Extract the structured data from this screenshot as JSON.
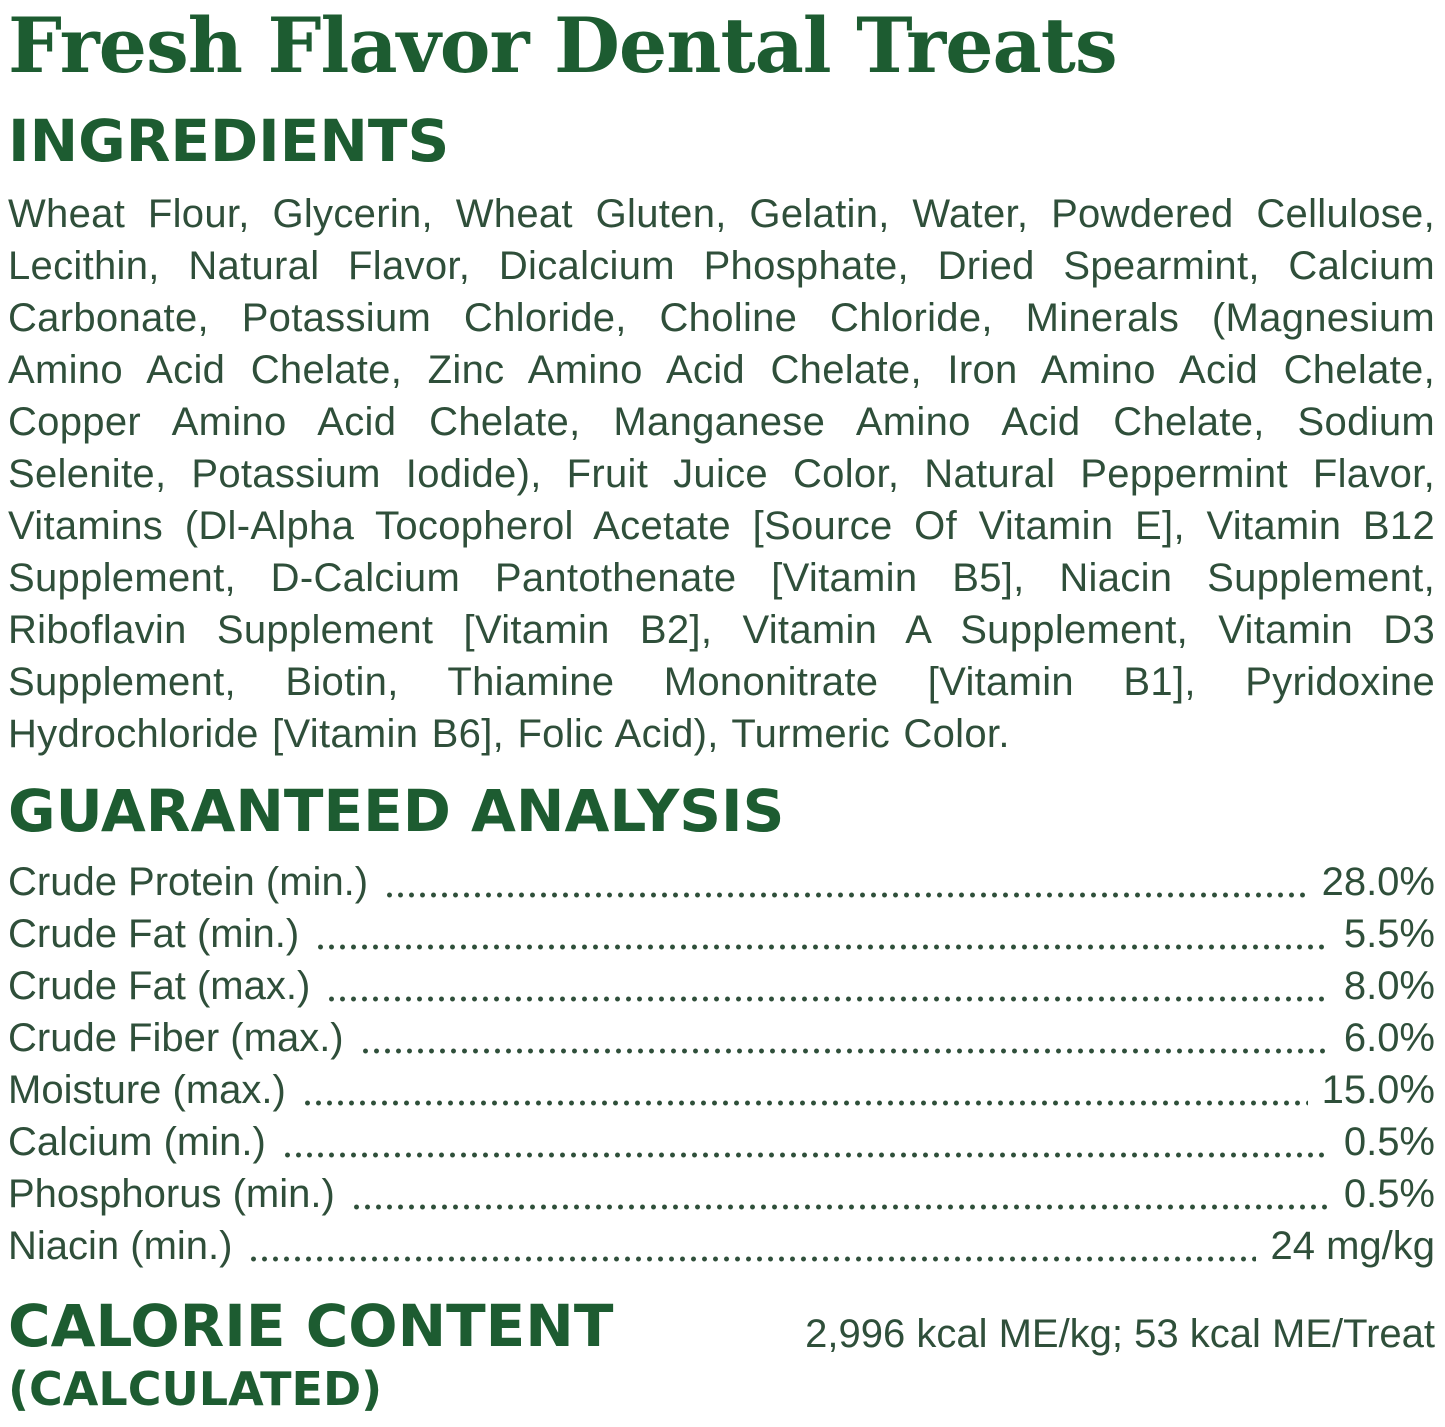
{
  "title": "Fresh Flavor Dental Treats",
  "ingredients": {
    "heading": "INGREDIENTS",
    "text": "Wheat Flour, Glycerin, Wheat Gluten, Gelatin, Water, Powdered Cellulose, Lecithin, Natural Flavor, Dicalcium Phosphate, Dried Spearmint, Calcium Carbonate, Potassium Chloride, Choline Chloride, Minerals (Magnesium Amino Acid Chelate, Zinc Amino Acid Chelate, Iron Amino Acid Chelate, Copper Amino Acid Chelate, Manganese Amino Acid Chelate, Sodium Selenite, Potassium Iodide), Fruit Juice Color, Natural Peppermint Flavor, Vitamins (Dl-Alpha Tocopherol Acetate [Source Of Vitamin E], Vitamin B12 Supplement, D-Calcium Pantothenate [Vitamin B5], Niacin Supplement, Riboflavin Supplement [Vitamin B2], Vitamin A Supplement, Vitamin D3 Supplement, Biotin, Thiamine Mononitrate [Vitamin B1], Pyridoxine Hydrochloride [Vitamin B6], Folic Acid), Turmeric Color."
  },
  "analysis": {
    "heading": "GUARANTEED ANALYSIS",
    "rows": [
      {
        "label": "Crude Protein (min.)",
        "value": "28.0%"
      },
      {
        "label": "Crude Fat (min.)",
        "value": "5.5%"
      },
      {
        "label": "Crude Fat (max.)",
        "value": "8.0%"
      },
      {
        "label": "Crude Fiber (max.)",
        "value": "6.0%"
      },
      {
        "label": "Moisture (max.)",
        "value": "15.0%"
      },
      {
        "label": "Calcium (min.)",
        "value": "0.5%"
      },
      {
        "label": "Phosphorus (min.)",
        "value": "0.5%"
      },
      {
        "label": "Niacin (min.)",
        "value": "24 mg/kg"
      }
    ]
  },
  "calorie": {
    "heading_line1": "CALORIE CONTENT",
    "heading_line2": "(CALCULATED)",
    "value": "2,996 kcal ME/kg; 53 kcal ME/Treat"
  },
  "colors": {
    "heading_green": "#1d5c31",
    "body_green": "#2f4f3a",
    "background": "#ffffff"
  }
}
